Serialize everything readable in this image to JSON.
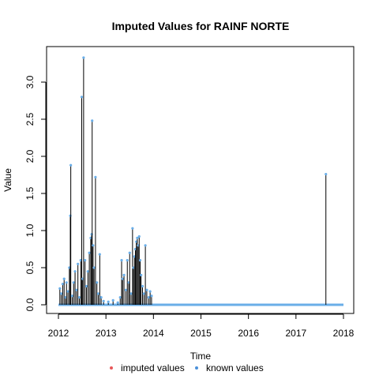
{
  "chart_data": {
    "type": "line",
    "title": "Imputed Values for  RAINF NORTE",
    "xlabel": "Time",
    "ylabel": "Value",
    "xlim": [
      2012,
      2018
    ],
    "ylim": [
      0,
      3.35
    ],
    "x_ticks": [
      "2012",
      "2013",
      "2014",
      "2015",
      "2016",
      "2017",
      "2018"
    ],
    "y_ticks": [
      "0.0",
      "0.5",
      "1.0",
      "1.5",
      "2.0",
      "2.5",
      "3.0"
    ],
    "legend": {
      "position": "bottom",
      "entries": [
        {
          "label": "imputed values",
          "color": "#e8585a"
        },
        {
          "label": "known values",
          "color": "#4a90d9"
        }
      ]
    },
    "line_color": "#000000",
    "known_color": "#6aaee8",
    "spikes": [
      {
        "x": 2012.03,
        "y": 0.22
      },
      {
        "x": 2012.06,
        "y": 0.15
      },
      {
        "x": 2012.09,
        "y": 0.28
      },
      {
        "x": 2012.12,
        "y": 0.35
      },
      {
        "x": 2012.15,
        "y": 0.1
      },
      {
        "x": 2012.17,
        "y": 0.3
      },
      {
        "x": 2012.2,
        "y": 0.18
      },
      {
        "x": 2012.23,
        "y": 0.5
      },
      {
        "x": 2012.25,
        "y": 1.2
      },
      {
        "x": 2012.26,
        "y": 1.88
      },
      {
        "x": 2012.29,
        "y": 0.12
      },
      {
        "x": 2012.32,
        "y": 0.3
      },
      {
        "x": 2012.35,
        "y": 0.45
      },
      {
        "x": 2012.38,
        "y": 0.2
      },
      {
        "x": 2012.41,
        "y": 0.55
      },
      {
        "x": 2012.44,
        "y": 0.1
      },
      {
        "x": 2012.47,
        "y": 0.6
      },
      {
        "x": 2012.49,
        "y": 2.8
      },
      {
        "x": 2012.51,
        "y": 0.35
      },
      {
        "x": 2012.53,
        "y": 3.33
      },
      {
        "x": 2012.56,
        "y": 0.6
      },
      {
        "x": 2012.59,
        "y": 0.25
      },
      {
        "x": 2012.62,
        "y": 0.45
      },
      {
        "x": 2012.65,
        "y": 0.7
      },
      {
        "x": 2012.68,
        "y": 0.9
      },
      {
        "x": 2012.7,
        "y": 0.95
      },
      {
        "x": 2012.71,
        "y": 2.48
      },
      {
        "x": 2012.73,
        "y": 0.8
      },
      {
        "x": 2012.75,
        "y": 0.5
      },
      {
        "x": 2012.78,
        "y": 1.72
      },
      {
        "x": 2012.81,
        "y": 0.3
      },
      {
        "x": 2012.84,
        "y": 0.15
      },
      {
        "x": 2012.87,
        "y": 0.68
      },
      {
        "x": 2012.9,
        "y": 0.1
      },
      {
        "x": 2012.95,
        "y": 0.05
      },
      {
        "x": 2013.05,
        "y": 0.04
      },
      {
        "x": 2013.15,
        "y": 0.06
      },
      {
        "x": 2013.25,
        "y": 0.03
      },
      {
        "x": 2013.3,
        "y": 0.1
      },
      {
        "x": 2013.33,
        "y": 0.6
      },
      {
        "x": 2013.35,
        "y": 0.35
      },
      {
        "x": 2013.38,
        "y": 0.4
      },
      {
        "x": 2013.42,
        "y": 0.2
      },
      {
        "x": 2013.45,
        "y": 0.6
      },
      {
        "x": 2013.48,
        "y": 0.3
      },
      {
        "x": 2013.5,
        "y": 0.7
      },
      {
        "x": 2013.53,
        "y": 0.15
      },
      {
        "x": 2013.56,
        "y": 1.03
      },
      {
        "x": 2013.58,
        "y": 0.5
      },
      {
        "x": 2013.6,
        "y": 0.65
      },
      {
        "x": 2013.62,
        "y": 0.75
      },
      {
        "x": 2013.64,
        "y": 0.85
      },
      {
        "x": 2013.66,
        "y": 0.9
      },
      {
        "x": 2013.68,
        "y": 0.8
      },
      {
        "x": 2013.7,
        "y": 0.92
      },
      {
        "x": 2013.72,
        "y": 0.6
      },
      {
        "x": 2013.74,
        "y": 0.4
      },
      {
        "x": 2013.77,
        "y": 0.25
      },
      {
        "x": 2013.8,
        "y": 0.15
      },
      {
        "x": 2013.83,
        "y": 0.8
      },
      {
        "x": 2013.86,
        "y": 0.2
      },
      {
        "x": 2013.9,
        "y": 0.1
      },
      {
        "x": 2013.93,
        "y": 0.18
      },
      {
        "x": 2013.96,
        "y": 0.12
      },
      {
        "x": 2017.63,
        "y": 1.76
      }
    ]
  }
}
